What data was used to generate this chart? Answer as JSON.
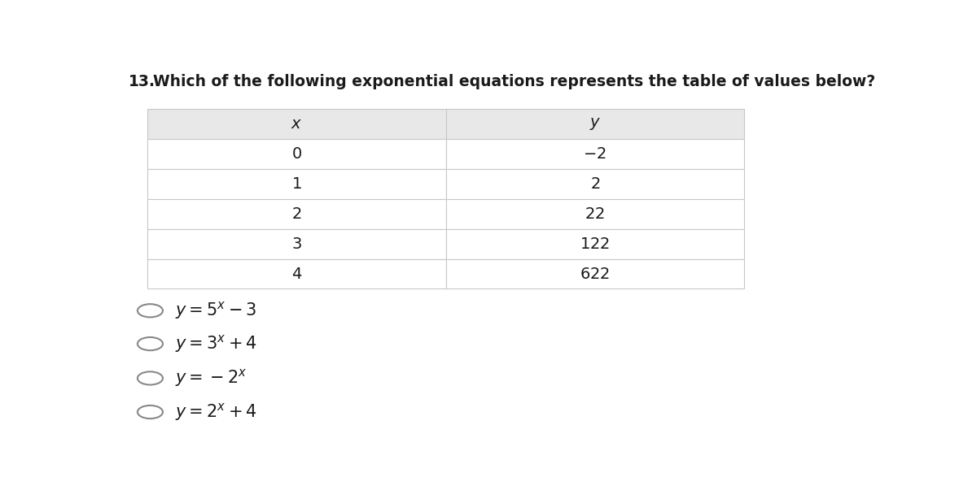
{
  "question_number": "13.",
  "question_text": "Which of the following exponential equations represents the table of values below?",
  "table": {
    "headers": [
      "$x$",
      "$y$"
    ],
    "rows": [
      [
        "$0$",
        "$-2$"
      ],
      [
        "$1$",
        "$2$"
      ],
      [
        "$2$",
        "$22$"
      ],
      [
        "$3$",
        "$122$"
      ],
      [
        "$4$",
        "$622$"
      ]
    ],
    "header_bg": "#e8e8e8",
    "border_color": "#c8c8c8"
  },
  "options_math": [
    "$y = 5^x - 3$",
    "$y = 3^x + 4$",
    "$y = -2^x$",
    "$y = 2^x + 4$"
  ],
  "background_color": "#ffffff",
  "text_color": "#1a1a1a",
  "title_fontsize": 13.5,
  "table_fontsize": 14,
  "option_fontsize": 15
}
